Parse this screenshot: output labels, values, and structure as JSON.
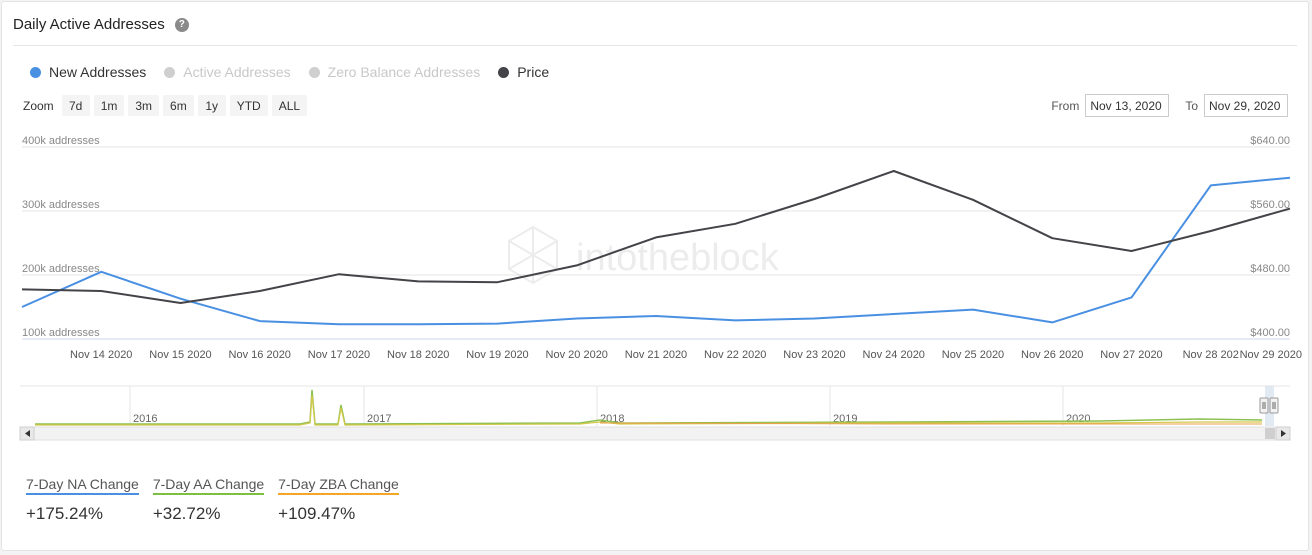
{
  "page": {
    "title": "Daily Active Addresses",
    "help_glyph": "?"
  },
  "legend": [
    {
      "label": "New Addresses",
      "color": "#4a90e2",
      "active": true
    },
    {
      "label": "Active Addresses",
      "color": "#cfcfcf",
      "active": false
    },
    {
      "label": "Zero Balance Addresses",
      "color": "#cfcfcf",
      "active": false
    },
    {
      "label": "Price",
      "color": "#434348",
      "active": true
    }
  ],
  "zoom": {
    "label": "Zoom",
    "buttons": [
      "7d",
      "1m",
      "3m",
      "6m",
      "1y",
      "YTD",
      "ALL"
    ]
  },
  "range": {
    "from_label": "From",
    "from_value": "Nov 13, 2020",
    "to_label": "To",
    "to_value": "Nov 29, 2020"
  },
  "watermark": "intotheblock",
  "chart_data": {
    "type": "line",
    "x": [
      "Nov 13 2020",
      "Nov 14 2020",
      "Nov 15 2020",
      "Nov 16 2020",
      "Nov 17 2020",
      "Nov 18 2020",
      "Nov 19 2020",
      "Nov 20 2020",
      "Nov 21 2020",
      "Nov 22 2020",
      "Nov 23 2020",
      "Nov 24 2020",
      "Nov 25 2020",
      "Nov 26 2020",
      "Nov 27 2020",
      "Nov 28 2020",
      "Nov 29 2020"
    ],
    "x_tick_labels": [
      "Nov 14 2020",
      "Nov 15 2020",
      "Nov 16 2020",
      "Nov 17 2020",
      "Nov 18 2020",
      "Nov 19 2020",
      "Nov 20 2020",
      "Nov 21 2020",
      "Nov 22 2020",
      "Nov 23 2020",
      "Nov 24 2020",
      "Nov 25 2020",
      "Nov 26 2020",
      "Nov 27 2020",
      "Nov 28 202",
      "Nov 29 2020"
    ],
    "y_left": {
      "ticks": [
        100000,
        200000,
        300000,
        400000
      ],
      "tick_labels": [
        "100k addresses",
        "200k addresses",
        "300k addresses",
        "400k addresses"
      ],
      "range": [
        100000,
        400000
      ]
    },
    "y_right": {
      "ticks": [
        400,
        480,
        560,
        640
      ],
      "tick_labels": [
        "$400.00",
        "$480.00",
        "$560.00",
        "$640.00"
      ],
      "range": [
        400,
        640
      ]
    },
    "grid": true,
    "series": [
      {
        "name": "New Addresses",
        "axis": "left",
        "color": "#4a90e2",
        "values": [
          150000,
          205000,
          163000,
          128000,
          123000,
          123000,
          124000,
          132000,
          136000,
          129000,
          132000,
          139000,
          146000,
          126000,
          165000,
          340000,
          352000
        ]
      },
      {
        "name": "Price",
        "axis": "right",
        "color": "#434348",
        "values": [
          462,
          460,
          445,
          460,
          481,
          472,
          471,
          492,
          527,
          544,
          575,
          610,
          574,
          526,
          510,
          535,
          563
        ]
      }
    ]
  },
  "navigator": {
    "years": [
      "2016",
      "2017",
      "2018",
      "2019",
      "2020"
    ]
  },
  "kpis": [
    {
      "label": "7-Day NA Change",
      "value": "+175.24%",
      "color": "#4a90e2"
    },
    {
      "label": "7-Day AA Change",
      "value": "+32.72%",
      "color": "#7ac143"
    },
    {
      "label": "7-Day ZBA Change",
      "value": "+109.47%",
      "color": "#f5a623"
    }
  ]
}
